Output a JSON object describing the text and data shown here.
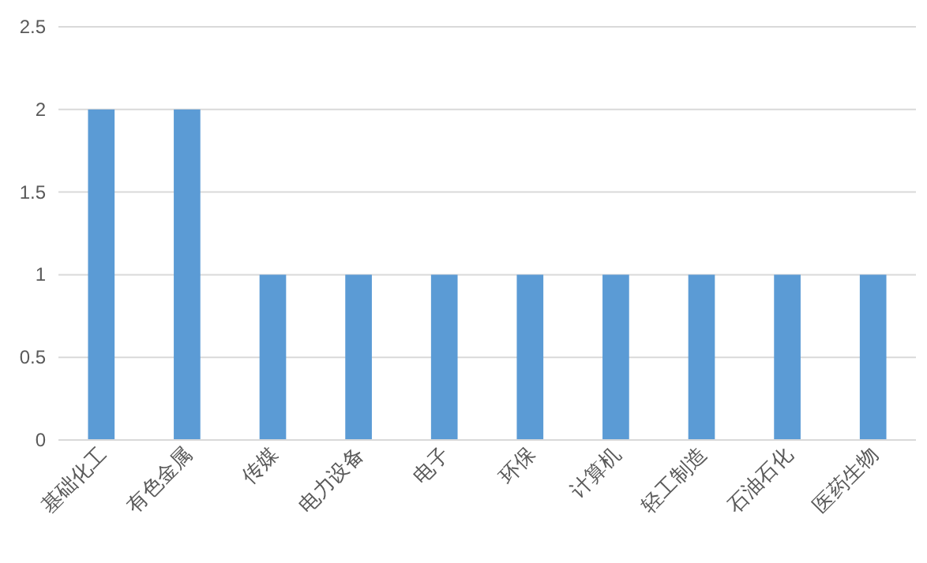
{
  "chart_data": {
    "type": "bar",
    "categories": [
      "基础化工",
      "有色金属",
      "传媒",
      "电力设备",
      "电子",
      "环保",
      "计算机",
      "轻工制造",
      "石油石化",
      "医药生物"
    ],
    "values": [
      2,
      2,
      1,
      1,
      1,
      1,
      1,
      1,
      1,
      1
    ],
    "color": "#5b9bd5",
    "ylim": [
      0,
      2.5
    ],
    "yticks": [
      0,
      0.5,
      1,
      1.5,
      2,
      2.5
    ],
    "grid": "y"
  }
}
